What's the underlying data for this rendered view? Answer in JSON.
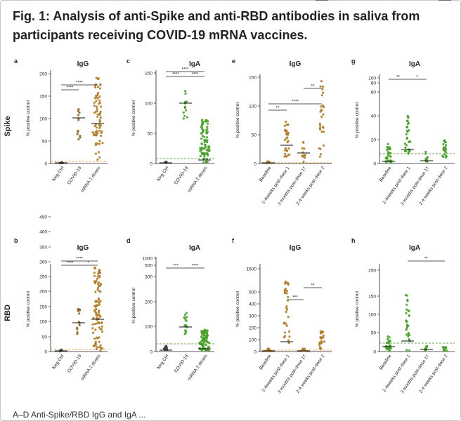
{
  "figure": {
    "title": "Fig. 1: Analysis of anti-Spike and anti-RBD antibodies in saliva from participants receiving COVID-19 mRNA vaccines.",
    "caption_start": "A–D Anti-Spike/RBD IgG and IgA ...",
    "row_labels": [
      "Spike",
      "RBD"
    ],
    "colors": {
      "neg": "#444444",
      "covid": "#8b6a2e",
      "mrna_igg": "#b07d2a",
      "green": "#4aa02c",
      "cutoff_orange": "#e08a2e",
      "cutoff_green": "#3a8a1a"
    }
  },
  "chart_data": [
    {
      "panel": "a",
      "type": "scatter",
      "title": "IgG",
      "ylabel": "% positive control",
      "ylim": [
        0,
        200
      ],
      "ticks": [
        "0",
        "50",
        "100",
        "150",
        "200"
      ],
      "categories": [
        "Neg Ctrl",
        "COVID-19",
        "mRNA 2 doses"
      ],
      "medians": [
        1,
        100,
        88
      ],
      "annotations": [
        "****",
        "****"
      ]
    },
    {
      "panel": "c",
      "type": "scatter",
      "title": "IgA",
      "ylabel": "% positive control",
      "ylim": [
        0,
        150
      ],
      "ticks": [
        "0",
        "50",
        "100",
        "150"
      ],
      "categories": [
        "Neg Ctrl",
        "COVID-19",
        "mRNA 2 doses"
      ],
      "medians": [
        1,
        101,
        5
      ],
      "annotations": [
        "****",
        "****",
        "****"
      ]
    },
    {
      "panel": "e",
      "type": "scatter",
      "title": "IgG",
      "ylabel": "% positive control",
      "ylim": [
        0,
        150
      ],
      "ticks": [
        "0",
        "50",
        "100",
        "150"
      ],
      "categories": [
        "Baseline",
        "2-4weeks post-dose 1",
        "3 months post-dose 1†",
        "2-4 weeks post-dose 2"
      ],
      "medians": [
        1,
        24,
        14,
        84
      ],
      "annotations": [
        "**",
        "****",
        "**"
      ]
    },
    {
      "panel": "g",
      "type": "scatter",
      "title": "IgA",
      "ylabel": "% positive control",
      "ticks": [
        "0",
        "20",
        "40",
        "60",
        "80",
        "100"
      ],
      "categories": [
        "Baseline",
        "2-4weeks post-dose 1",
        "3 months post-dose 1†",
        "2-4 weeks post-dose 2"
      ],
      "medians": [
        2,
        12,
        3,
        5
      ],
      "annotations": [
        "**",
        "*"
      ]
    },
    {
      "panel": "b",
      "type": "scatter",
      "title": "IgG",
      "ylabel": "% positive control",
      "ticks": [
        "0",
        "50",
        "100",
        "150",
        "200",
        "250",
        "300",
        "350",
        "400",
        "450"
      ],
      "categories": [
        "Neg Ctrl",
        "COVID-19",
        "mRNA 2 doses"
      ],
      "medians": [
        2,
        100,
        145
      ],
      "annotations": [
        "****",
        "****",
        "*"
      ]
    },
    {
      "panel": "d",
      "type": "scatter",
      "title": "IgA",
      "ylabel": "% positive control",
      "ticks": [
        "0",
        "100",
        "200",
        "300",
        "500",
        "1000"
      ],
      "categories": [
        "Neg Ctrl",
        "COVID-19",
        "mRNA 2 doses"
      ],
      "medians": [
        5,
        105,
        10
      ],
      "annotations": [
        "***",
        "****"
      ]
    },
    {
      "panel": "f",
      "type": "scatter",
      "title": "IgG",
      "ylabel": "% positive control",
      "ticks": [
        "0",
        "100",
        "200",
        "300",
        "400",
        "500",
        "1500"
      ],
      "categories": [
        "Baseline",
        "2-4weeks post-dose 1",
        "3 months post-dose 1†",
        "2-4 weeks post-dose 2"
      ],
      "medians": [
        3,
        55,
        3,
        45
      ],
      "annotations": [
        "***",
        "**"
      ]
    },
    {
      "panel": "h",
      "type": "scatter",
      "title": "IgA",
      "ylabel": "% positive control",
      "ticks": [
        "0",
        "50",
        "100",
        "150",
        "250"
      ],
      "categories": [
        "Baseline",
        "2-4weeks post-dose 1",
        "3 months post-dose 1†",
        "2-4 weeks post-dose 2"
      ],
      "medians": [
        8,
        18,
        4,
        2
      ],
      "annotations": [
        "**"
      ]
    }
  ]
}
